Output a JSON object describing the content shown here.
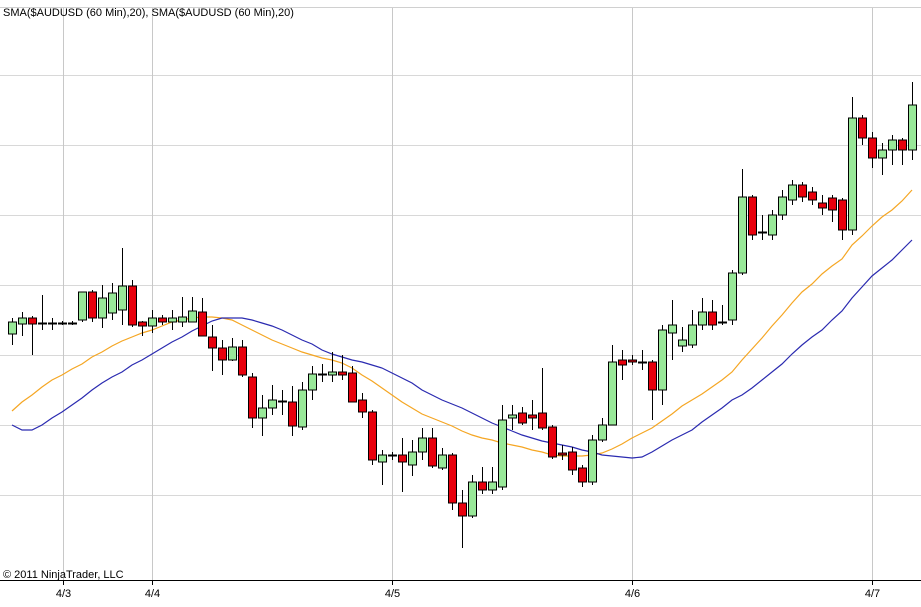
{
  "chart_data": {
    "type": "candlestick",
    "legend_text": "SMA($AUDUSD (60 Min),20), SMA($AUDUSD (60 Min),20)",
    "copyright": "© 2011 NinjaTrader, LLC",
    "up_color": "#98e898",
    "down_color": "#e8000c",
    "grid": true,
    "xlim": [
      -1.2,
      90.9
    ],
    "ylim": [
      -15,
      557
    ],
    "xticks": [
      {
        "value": 5.1,
        "label": "4/3"
      },
      {
        "value": 14,
        "label": "4/4"
      },
      {
        "value": 38,
        "label": "4/5"
      },
      {
        "value": 62,
        "label": "4/6"
      },
      {
        "value": 86,
        "label": "4/7"
      }
    ],
    "ygrid": [
      70,
      140,
      210,
      280,
      350,
      420,
      490
    ],
    "candles": {
      "open": [
        231,
        241,
        247,
        242,
        242,
        242,
        242,
        245,
        273,
        247,
        252,
        255,
        279,
        243,
        239,
        247,
        243,
        243,
        243,
        253,
        228,
        217,
        205,
        218,
        188,
        147,
        157,
        163,
        163,
        138,
        175,
        190,
        190,
        193,
        192,
        165,
        153,
        103,
        109,
        110,
        100,
        113,
        127,
        97,
        110,
        62,
        49,
        83,
        75,
        78,
        147,
        152,
        150,
        152,
        138,
        112,
        113,
        97,
        83,
        125,
        140,
        205,
        205,
        202,
        203,
        175,
        232,
        219,
        220,
        240,
        253,
        243,
        245,
        292,
        368,
        333,
        330,
        350,
        365,
        380,
        373,
        362,
        367,
        365,
        335,
        447,
        427,
        407,
        415,
        425,
        415
      ],
      "high": [
        247,
        253,
        249,
        270,
        247,
        244,
        244,
        273,
        275,
        280,
        282,
        317,
        285,
        244,
        255,
        250,
        255,
        268,
        268,
        267,
        240,
        225,
        227,
        225,
        192,
        170,
        180,
        175,
        179,
        183,
        199,
        201,
        213,
        210,
        199,
        172,
        155,
        115,
        113,
        127,
        125,
        137,
        137,
        117,
        112,
        75,
        90,
        98,
        98,
        160,
        160,
        158,
        165,
        197,
        140,
        120,
        118,
        100,
        130,
        147,
        220,
        215,
        210,
        215,
        205,
        240,
        265,
        238,
        255,
        267,
        265,
        260,
        295,
        396,
        370,
        350,
        355,
        375,
        385,
        383,
        378,
        370,
        370,
        367,
        468,
        450,
        433,
        422,
        430,
        427,
        483
      ],
      "low": [
        220,
        229,
        210,
        235,
        235,
        240,
        240,
        243,
        243,
        237,
        245,
        240,
        238,
        229,
        232,
        240,
        235,
        238,
        243,
        229,
        194,
        190,
        204,
        188,
        137,
        129,
        150,
        150,
        129,
        135,
        165,
        183,
        183,
        185,
        163,
        147,
        100,
        80,
        105,
        73,
        89,
        105,
        97,
        95,
        55,
        17,
        47,
        71,
        71,
        75,
        135,
        140,
        135,
        135,
        106,
        105,
        90,
        78,
        80,
        123,
        140,
        185,
        200,
        195,
        145,
        160,
        205,
        213,
        217,
        235,
        235,
        240,
        240,
        290,
        325,
        325,
        325,
        345,
        360,
        363,
        360,
        350,
        343,
        325,
        330,
        420,
        397,
        390,
        400,
        400,
        405
      ],
      "close": [
        243,
        247,
        241,
        242,
        242,
        242,
        242,
        273,
        247,
        267,
        272,
        279,
        240,
        239,
        247,
        243,
        247,
        248,
        254,
        229,
        217,
        205,
        218,
        190,
        147,
        157,
        165,
        164,
        139,
        175,
        191,
        191,
        193,
        190,
        163,
        153,
        105,
        110,
        110,
        103,
        113,
        127,
        99,
        110,
        62,
        49,
        83,
        75,
        83,
        145,
        150,
        142,
        147,
        137,
        108,
        110,
        95,
        83,
        125,
        140,
        203,
        200,
        203,
        203,
        175,
        235,
        240,
        225,
        240,
        253,
        240,
        243,
        292,
        368,
        330,
        333,
        350,
        368,
        380,
        368,
        365,
        357,
        355,
        335,
        447,
        427,
        407,
        415,
        425,
        415,
        460
      ]
    },
    "series": [
      {
        "color": "#f5a623",
        "values": [
          154,
          163,
          170,
          178,
          185,
          190,
          196,
          201,
          208,
          213,
          219,
          224,
          228,
          232,
          235,
          239,
          243,
          245,
          247,
          248,
          248,
          247,
          245,
          240,
          235,
          230,
          225,
          221,
          217,
          213,
          210,
          207,
          205,
          202,
          197,
          190,
          184,
          177,
          170,
          163,
          157,
          151,
          147,
          143,
          139,
          134,
          130,
          127,
          125,
          122,
          120,
          118,
          115,
          113,
          110,
          109,
          109,
          109,
          110,
          112,
          116,
          121,
          127,
          132,
          137,
          144,
          151,
          159,
          165,
          171,
          178,
          185,
          193,
          205,
          216,
          227,
          239,
          250,
          262,
          273,
          281,
          291,
          299,
          306,
          320,
          329,
          339,
          348,
          355,
          364,
          375
        ]
      },
      {
        "color": "#2a2ab0",
        "values": [
          140,
          135,
          135,
          140,
          147,
          153,
          160,
          167,
          175,
          182,
          188,
          193,
          200,
          205,
          211,
          217,
          223,
          228,
          234,
          239,
          244,
          247,
          247,
          247,
          245,
          242,
          239,
          235,
          230,
          225,
          221,
          215,
          211,
          208,
          205,
          203,
          200,
          197,
          192,
          187,
          182,
          175,
          170,
          165,
          161,
          157,
          152,
          147,
          142,
          138,
          134,
          130,
          127,
          124,
          122,
          120,
          118,
          115,
          113,
          110,
          109,
          108,
          107,
          108,
          113,
          119,
          125,
          130,
          135,
          143,
          150,
          157,
          165,
          170,
          177,
          185,
          193,
          201,
          211,
          220,
          228,
          235,
          245,
          254,
          267,
          278,
          289,
          297,
          305,
          315,
          325
        ]
      }
    ]
  }
}
